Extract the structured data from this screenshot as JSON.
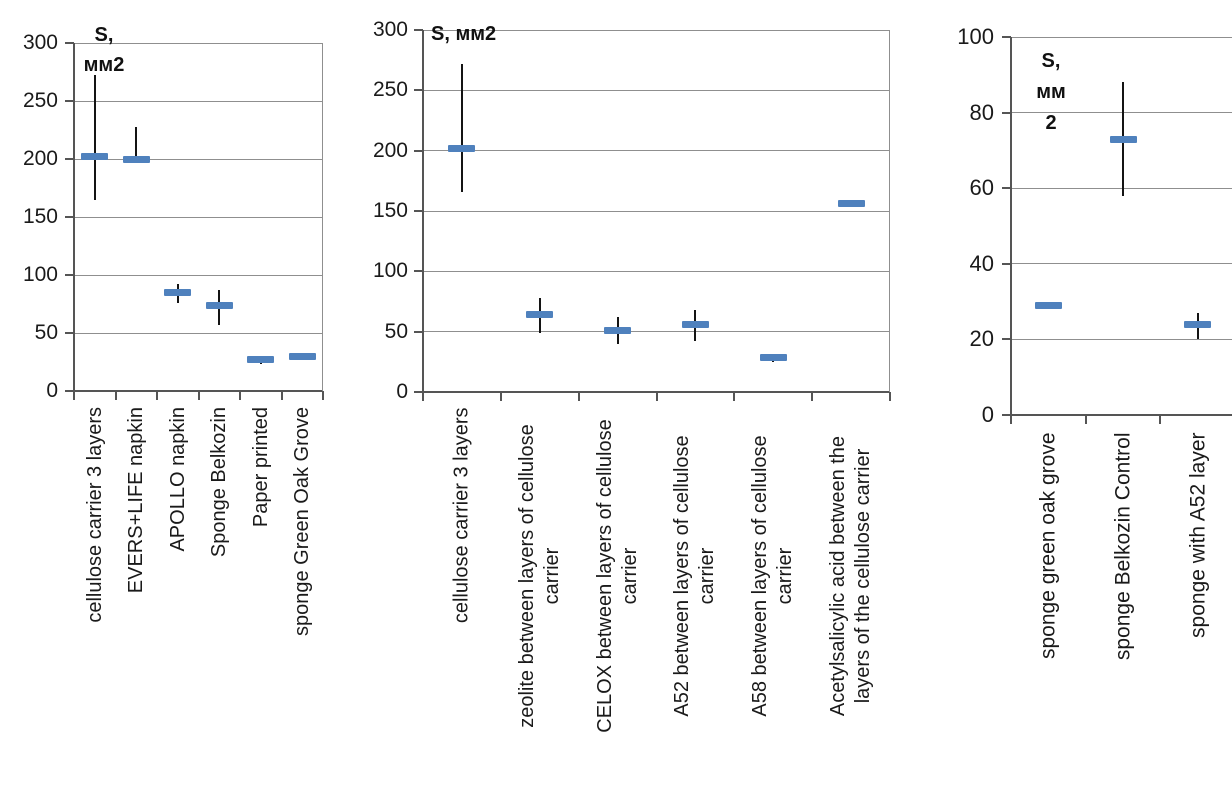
{
  "page": {
    "background": "#ffffff"
  },
  "colors": {
    "marker": "#4f81bd",
    "whisker": "#141414",
    "gridline": "#8f8f8f",
    "axis": "#555555",
    "text": "#1a1a1a"
  },
  "chart_data": [
    {
      "type": "errorbar",
      "title": "S, мм2",
      "title_lines": [
        "S,",
        "мм2"
      ],
      "ylim": [
        0,
        300
      ],
      "ytick_step": 50,
      "grid": true,
      "legend": false,
      "categories": [
        "cellulose carrier 3 layers",
        "EVERS+LIFE napkin",
        "APOLLO napkin",
        "Sponge Belkozin",
        "Paper printed",
        "sponge Green Oak Grove"
      ],
      "means": [
        202,
        200,
        85,
        74,
        27,
        30
      ],
      "whisker_low": [
        165,
        200,
        76,
        57,
        23,
        30
      ],
      "whisker_high": [
        272,
        228,
        92,
        87,
        29,
        30
      ]
    },
    {
      "type": "errorbar",
      "title": "S, мм2",
      "title_lines": [
        "S, мм2"
      ],
      "ylim": [
        0,
        300
      ],
      "ytick_step": 50,
      "grid": true,
      "legend": false,
      "categories": [
        [
          "cellulose carrier 3 layers"
        ],
        [
          "zeolite between layers of cellulose",
          "carrier"
        ],
        [
          "CELOX between layers of cellulose",
          "carrier"
        ],
        [
          "A52 between layers of cellulose",
          "carrier"
        ],
        [
          "A58 between layers of cellulose",
          "carrier"
        ],
        [
          "Acetylsalicylic acid between the",
          "layers of the cellulose carrier"
        ]
      ],
      "means": [
        202,
        64,
        51,
        56,
        29,
        156
      ],
      "whisker_low": [
        166,
        49,
        40,
        42,
        25,
        156
      ],
      "whisker_high": [
        272,
        78,
        62,
        68,
        31,
        156
      ]
    },
    {
      "type": "errorbar",
      "title": "S, мм 2",
      "title_lines": [
        "S,",
        "мм",
        "2"
      ],
      "ylim": [
        0,
        100
      ],
      "ytick_step": 20,
      "grid": true,
      "legend": false,
      "categories": [
        "sponge green oak grove",
        "sponge Belkozin Control",
        "sponge with A52 layer"
      ],
      "means": [
        29,
        73,
        24
      ],
      "whisker_low": [
        29,
        58,
        20
      ],
      "whisker_high": [
        29,
        88,
        27
      ]
    }
  ]
}
